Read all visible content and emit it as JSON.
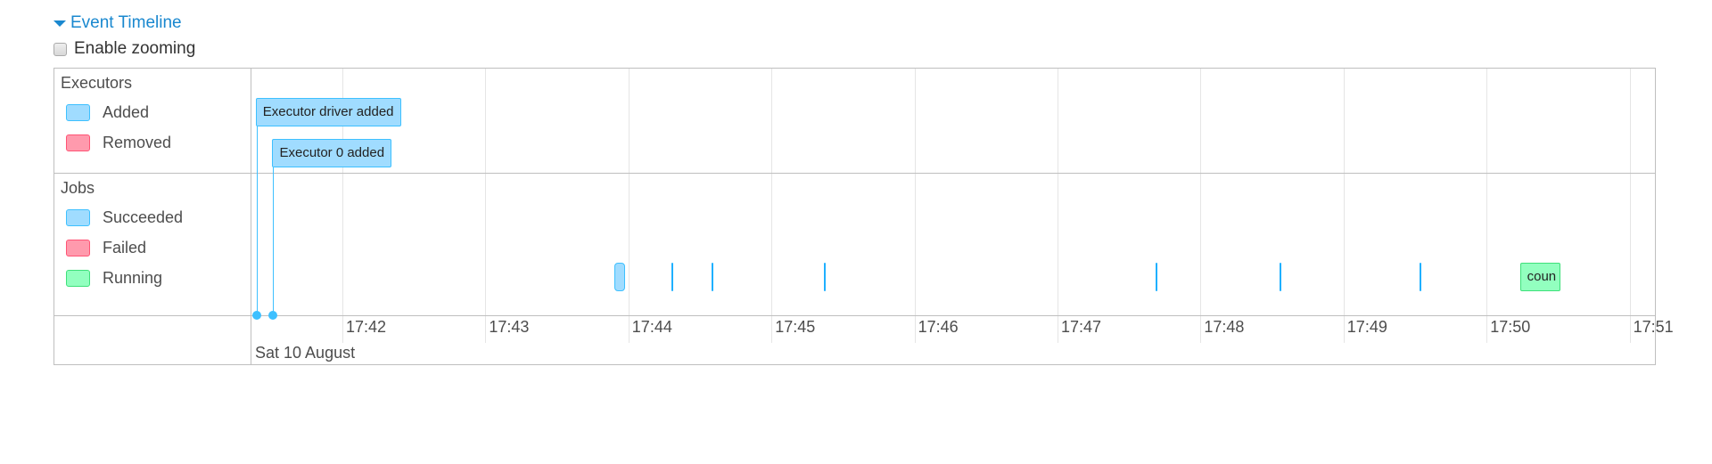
{
  "header": {
    "title": "Event Timeline",
    "expanded_icon": "caret-down-icon"
  },
  "zoom_toggle": {
    "label": "Enable zooming",
    "checked": false
  },
  "colors": {
    "added": "#a0dcff",
    "added_border": "#3ec0ff",
    "removed": "#ff9aad",
    "removed_border": "#ff5475",
    "running": "#92ffbf",
    "running_border": "#3ee07a",
    "link": "#1a88cf"
  },
  "groups": {
    "executors": {
      "label": "Executors",
      "legend": [
        {
          "label": "Added",
          "color": "#a0dcff",
          "border": "#3ec0ff"
        },
        {
          "label": "Removed",
          "color": "#ff9aad",
          "border": "#ff5475"
        }
      ]
    },
    "jobs": {
      "label": "Jobs",
      "legend": [
        {
          "label": "Succeeded",
          "color": "#a0dcff",
          "border": "#3ec0ff"
        },
        {
          "label": "Failed",
          "color": "#ff9aad",
          "border": "#ff5475"
        },
        {
          "label": "Running",
          "color": "#92ffbf",
          "border": "#3ee07a"
        }
      ]
    }
  },
  "executor_events": [
    {
      "label": "Executor driver added",
      "time": "17:41:24"
    },
    {
      "label": "Executor 0 added",
      "time": "17:41:31"
    }
  ],
  "jobs": [
    {
      "status": "succeeded",
      "start": "17:43:54",
      "end": "17:43:57"
    },
    {
      "status": "succeeded",
      "start": "17:44:18",
      "end": "17:44:18"
    },
    {
      "status": "succeeded",
      "start": "17:44:35",
      "end": "17:44:35"
    },
    {
      "status": "succeeded",
      "start": "17:45:22",
      "end": "17:45:22"
    },
    {
      "status": "succeeded",
      "start": "17:47:41",
      "end": "17:47:42"
    },
    {
      "status": "succeeded",
      "start": "17:48:33",
      "end": "17:48:33"
    },
    {
      "status": "succeeded",
      "start": "17:49:32",
      "end": "17:49:32"
    },
    {
      "status": "running",
      "start": "17:50:14",
      "end": "17:50:31",
      "label": "coun"
    }
  ],
  "axis": {
    "ticks": [
      "17:42",
      "17:43",
      "17:44",
      "17:45",
      "17:46",
      "17:47",
      "17:48",
      "17:49",
      "17:50",
      "17:51"
    ],
    "date": "Sat 10 August"
  }
}
